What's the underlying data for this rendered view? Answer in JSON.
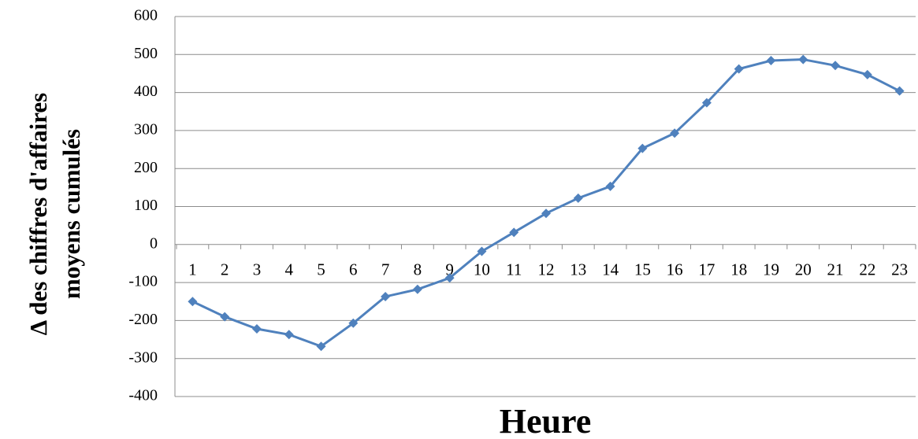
{
  "chart_data": {
    "type": "line",
    "y_label": [
      "Δ  des  chiffres d'affaires",
      "moyens cumulés"
    ],
    "x_label": "Heure",
    "categories": [
      "1",
      "2",
      "3",
      "4",
      "5",
      "6",
      "7",
      "8",
      "9",
      "10",
      "11",
      "12",
      "13",
      "14",
      "15",
      "16",
      "17",
      "18",
      "19",
      "20",
      "21",
      "22",
      "23"
    ],
    "series": [
      {
        "name": null,
        "color": "#4f81bd",
        "values": [
          -150,
          -190,
          -222,
          -237,
          -268,
          -207,
          -137,
          -118,
          -88,
          -18,
          32,
          82,
          122,
          153,
          253,
          293,
          373,
          462,
          484,
          487,
          471,
          447,
          404
        ]
      }
    ],
    "ylim": [
      -400,
      600
    ],
    "yticks": [
      -400,
      -300,
      -200,
      -100,
      0,
      100,
      200,
      300,
      400,
      500,
      600
    ],
    "grid": true
  }
}
